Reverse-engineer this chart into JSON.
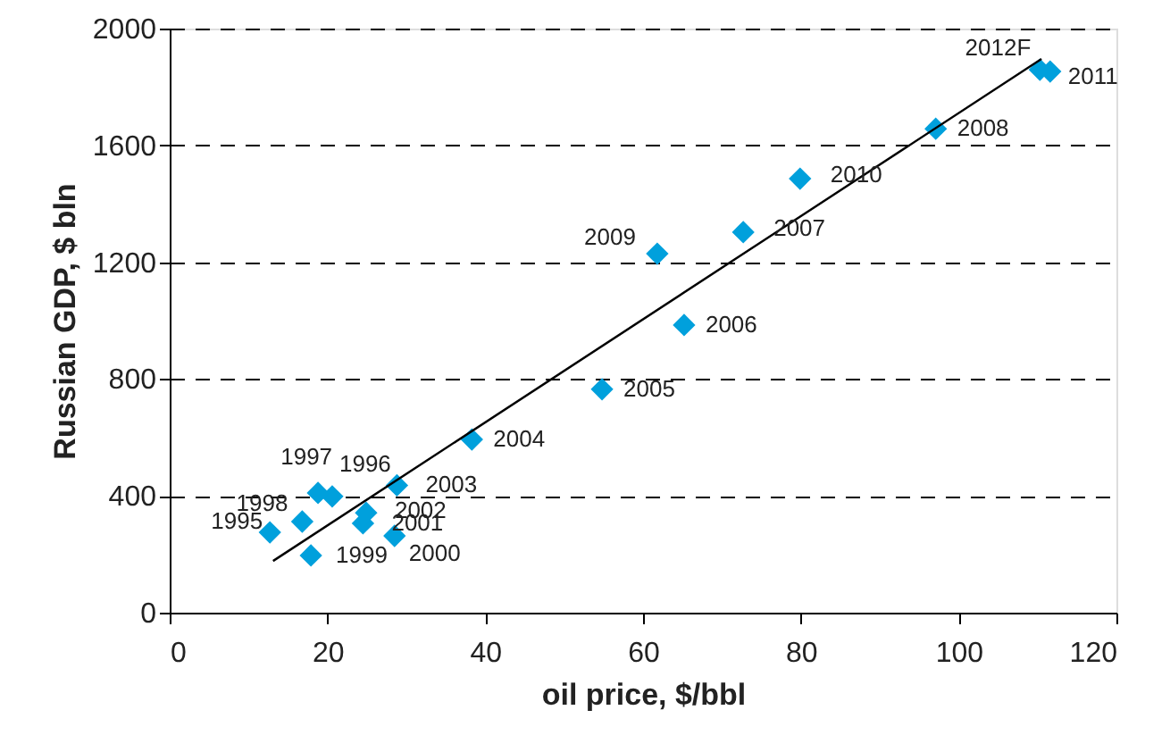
{
  "chart_data": {
    "type": "scatter",
    "xlabel": "oil price, $/bbl",
    "ylabel": "Russian GDP, $ bln",
    "xlim": [
      0,
      120
    ],
    "xticks": [
      0,
      20,
      40,
      60,
      80,
      100,
      120
    ],
    "ylim": [
      0,
      2000
    ],
    "yticks": [
      0,
      400,
      800,
      1200,
      1600,
      2000
    ],
    "grid": "y",
    "series": [
      {
        "marker": "diamond",
        "color": "#00a0dc",
        "x": [
          12.7,
          20.6,
          18.8,
          16.8,
          17.9,
          28.5,
          24.5,
          24.9,
          28.8,
          38.3,
          54.8,
          65.2,
          72.7,
          97.1,
          61.8,
          79.9,
          111.6,
          110.3
        ],
        "values": [
          275,
          398,
          410,
          312,
          196,
          263,
          306,
          342,
          436,
          593,
          765,
          985,
          1303,
          1657,
          1229,
          1486,
          1853,
          1859
        ]
      },
      {
        "type": "line",
        "marker": "none",
        "color": "#000000",
        "x": [
          13.1,
          110.5
        ],
        "values": [
          177,
          1896
        ]
      }
    ],
    "annotations": [
      {
        "text": "1995",
        "x": 12.7,
        "y": 275
      },
      {
        "text": "1996",
        "x": 20.6,
        "y": 398
      },
      {
        "text": "1997",
        "x": 18.8,
        "y": 410
      },
      {
        "text": "1998",
        "x": 16.8,
        "y": 312
      },
      {
        "text": "1999",
        "x": 17.9,
        "y": 196
      },
      {
        "text": "2000",
        "x": 28.5,
        "y": 263
      },
      {
        "text": "2001",
        "x": 24.5,
        "y": 306
      },
      {
        "text": "2002",
        "x": 24.9,
        "y": 342
      },
      {
        "text": "2003",
        "x": 28.8,
        "y": 436
      },
      {
        "text": "2004",
        "x": 38.3,
        "y": 593
      },
      {
        "text": "2005",
        "x": 54.8,
        "y": 765
      },
      {
        "text": "2006",
        "x": 65.2,
        "y": 985
      },
      {
        "text": "2007",
        "x": 72.7,
        "y": 1303
      },
      {
        "text": "2008",
        "x": 97.1,
        "y": 1657
      },
      {
        "text": "2009",
        "x": 61.8,
        "y": 1229
      },
      {
        "text": "2010",
        "x": 79.9,
        "y": 1486
      },
      {
        "text": "2011",
        "x": 111.6,
        "y": 1853
      },
      {
        "text": "2012F",
        "x": 110.3,
        "y": 1859
      }
    ]
  }
}
